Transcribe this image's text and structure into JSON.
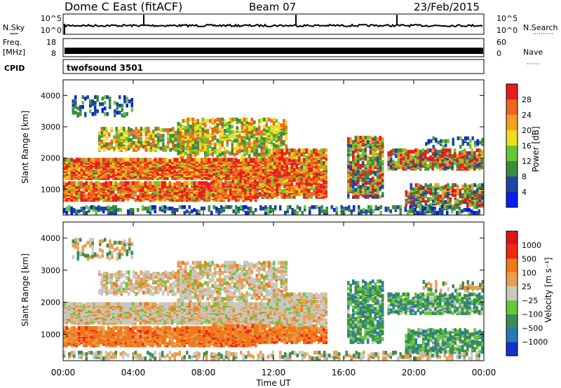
{
  "header": {
    "station": "Dome C East (fitACF)",
    "beam": "Beam 07",
    "date": "23/Feb/2015"
  },
  "noise_panel": {
    "left_label": "N.Sky",
    "right_label": "N.Search",
    "left_ticks": [
      "10^5",
      "10^0"
    ],
    "right_ticks": [
      "10^5",
      "10^0"
    ]
  },
  "freq_panel": {
    "left_label_top": "Freq.",
    "left_label_unit": "[MHz]",
    "left_ticks": [
      "18",
      "8"
    ],
    "right_label": "Nave",
    "right_ticks": [
      "60",
      "0"
    ]
  },
  "cpid_panel": {
    "label": "CPID",
    "program": "twofsound 3501"
  },
  "x_axis": {
    "title": "Time UT",
    "ticks": [
      "00:00",
      "04:00",
      "08:00",
      "12:00",
      "16:00",
      "20:00",
      "00:00"
    ]
  },
  "chart_data": [
    {
      "type": "heatmap",
      "name": "power",
      "ylabel": "Slant Range [km]",
      "y_ticks": [
        "1000",
        "2000",
        "3000",
        "4000"
      ],
      "ylim": [
        180,
        4500
      ],
      "xlim_hours": [
        0,
        24
      ],
      "colorbar": {
        "label": "Power [dB]",
        "ticks": [
          "4",
          "8",
          "12",
          "16",
          "20",
          "24",
          "28"
        ],
        "colors": [
          "#0a1ee6",
          "#1e46a0",
          "#3c8c3c",
          "#64c832",
          "#f0dc1e",
          "#f5a01e",
          "#f0641e",
          "#e61e1e"
        ]
      }
    },
    {
      "type": "heatmap",
      "name": "velocity",
      "ylabel": "Slant Range [km]",
      "y_ticks": [
        "1000",
        "2000",
        "3000",
        "4000"
      ],
      "ylim": [
        180,
        4500
      ],
      "xlim_hours": [
        0,
        24
      ],
      "colorbar": {
        "label": "Velocity [m s⁻¹]",
        "ticks": [
          "1000",
          "500",
          "100",
          "25",
          "−25",
          "−100",
          "−500",
          "−1000"
        ],
        "colors": [
          "#1432c8",
          "#2878b4",
          "#3c8c50",
          "#64c83c",
          "#c8c8c0",
          "#e6a050",
          "#f07818",
          "#f02814",
          "#dc1414"
        ]
      }
    }
  ]
}
